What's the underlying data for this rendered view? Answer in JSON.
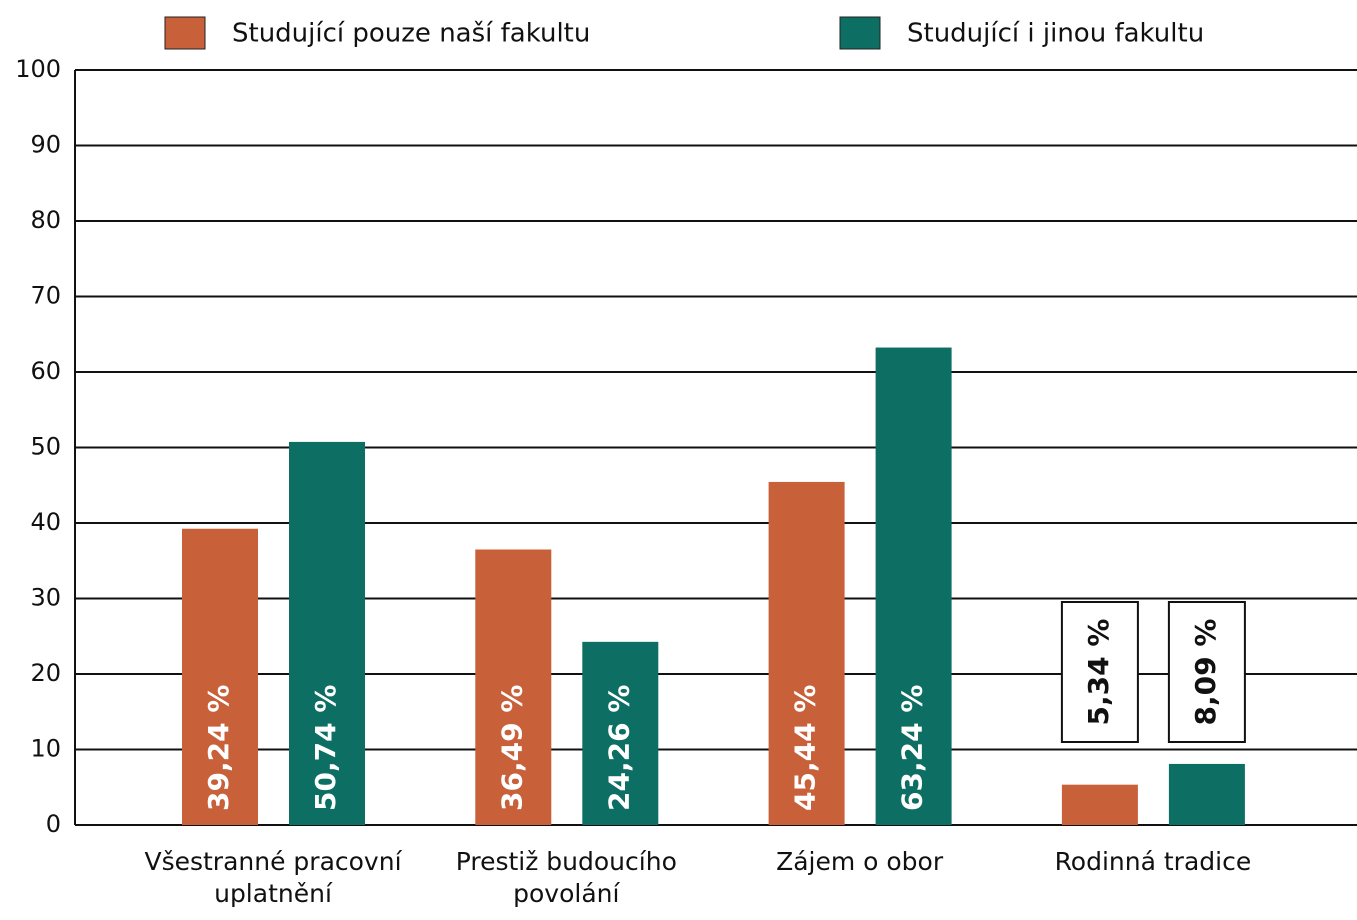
{
  "chart_data": {
    "type": "bar",
    "categories": [
      "Všestranné pracovní uplatnění",
      "Prestiž budoucího povolání",
      "Zájem o obor",
      "Rodinná tradice"
    ],
    "series": [
      {
        "name": "Studující pouze naší fakultu",
        "color": "#c8603a",
        "values": [
          39.24,
          36.49,
          45.44,
          5.34
        ],
        "value_labels": [
          "39,24 %",
          "36,49 %",
          "45,44 %",
          "5,34 %"
        ]
      },
      {
        "name": "Studující i jinou fakultu",
        "color": "#0d6e63",
        "values": [
          50.74,
          24.26,
          63.24,
          8.09
        ],
        "value_labels": [
          "50,74 %",
          "24,26 %",
          "63,24 %",
          "8,09 %"
        ]
      }
    ],
    "ylim": [
      0,
      100
    ],
    "yticks": [
      0,
      10,
      20,
      30,
      40,
      50,
      60,
      70,
      80,
      90,
      100
    ],
    "grid": true,
    "legend": "top"
  }
}
